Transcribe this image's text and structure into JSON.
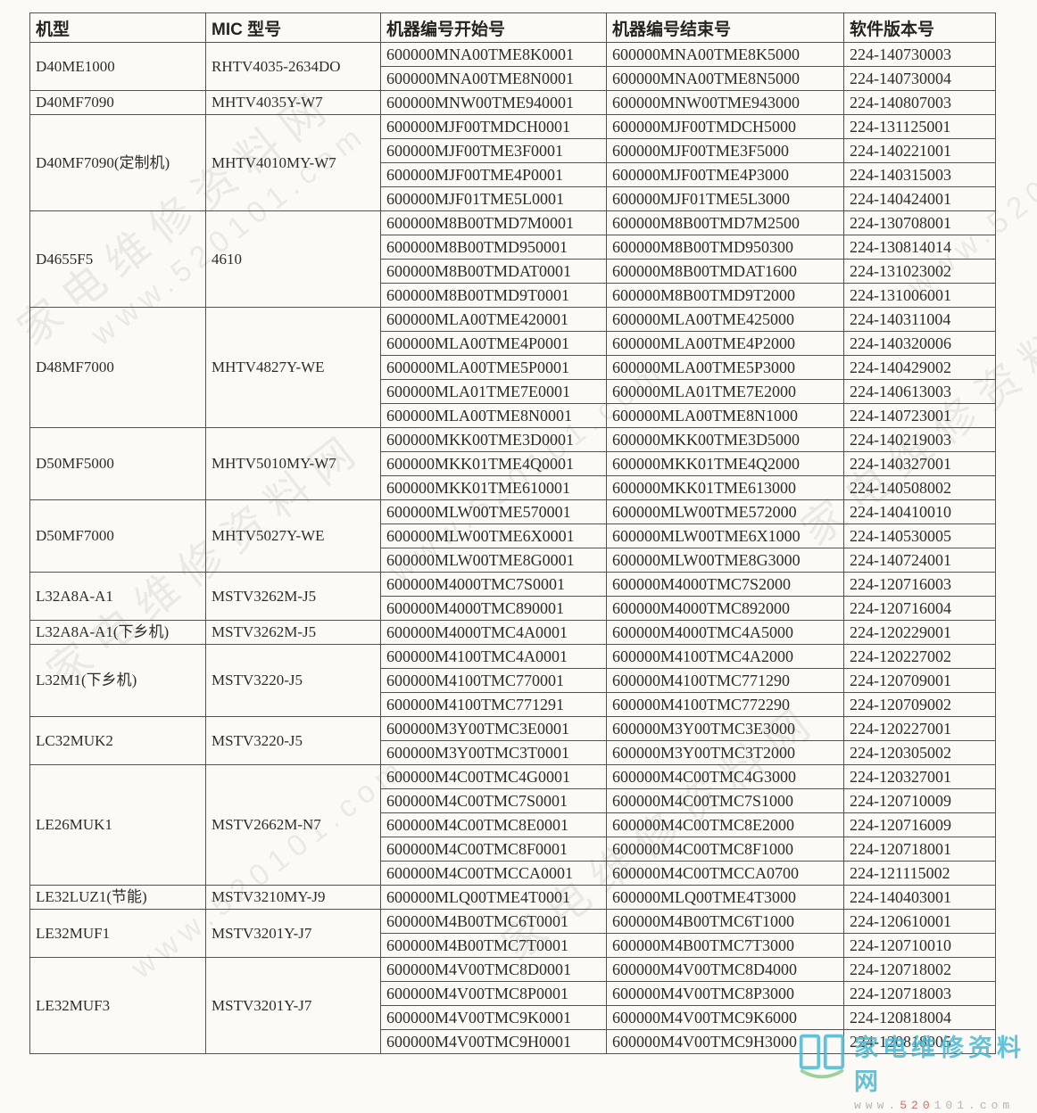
{
  "watermark": {
    "text_cn": "家电维修资料网",
    "text_url": "www.520101.com"
  },
  "logo": {
    "site_name": "家电维修资料网",
    "url_prefix": "www.",
    "url_highlight": "520",
    "url_suffix": "101.com",
    "accent_color": "#49b9d4",
    "highlight_color": "#d05347"
  },
  "table": {
    "headers": [
      "机型",
      "MIC 型号",
      "机器编号开始号",
      "机器编号结束号",
      "软件版本号"
    ],
    "groups": [
      {
        "model": "D40ME1000",
        "mic": "RHTV4035-2634DO",
        "rows": [
          [
            "600000MNA00TME8K0001",
            "600000MNA00TME8K5000",
            "224-140730003"
          ],
          [
            "600000MNA00TME8N0001",
            "600000MNA00TME8N5000",
            "224-140730004"
          ]
        ]
      },
      {
        "model": "D40MF7090",
        "mic": "MHTV4035Y-W7",
        "rows": [
          [
            "600000MNW00TME940001",
            "600000MNW00TME943000",
            "224-140807003"
          ]
        ]
      },
      {
        "model": "D40MF7090(定制机)",
        "mic": "MHTV4010MY-W7",
        "rows": [
          [
            "600000MJF00TMDCH0001",
            "600000MJF00TMDCH5000",
            "224-131125001"
          ],
          [
            "600000MJF00TME3F0001",
            "600000MJF00TME3F5000",
            "224-140221001"
          ],
          [
            "600000MJF00TME4P0001",
            "600000MJF00TME4P3000",
            "224-140315003"
          ],
          [
            "600000MJF01TME5L0001",
            "600000MJF01TME5L3000",
            "224-140424001"
          ]
        ]
      },
      {
        "model": "D4655F5",
        "mic": "4610",
        "rows": [
          [
            "600000M8B00TMD7M0001",
            "600000M8B00TMD7M2500",
            "224-130708001"
          ],
          [
            "600000M8B00TMD950001",
            "600000M8B00TMD950300",
            "224-130814014"
          ],
          [
            "600000M8B00TMDAT0001",
            "600000M8B00TMDAT1600",
            "224-131023002"
          ],
          [
            "600000M8B00TMD9T0001",
            "600000M8B00TMD9T2000",
            "224-131006001"
          ]
        ]
      },
      {
        "model": "D48MF7000",
        "mic": "MHTV4827Y-WE",
        "rows": [
          [
            "600000MLA00TME420001",
            "600000MLA00TME425000",
            "224-140311004"
          ],
          [
            "600000MLA00TME4P0001",
            "600000MLA00TME4P2000",
            "224-140320006"
          ],
          [
            "600000MLA00TME5P0001",
            "600000MLA00TME5P3000",
            "224-140429002"
          ],
          [
            "600000MLA01TME7E0001",
            "600000MLA01TME7E2000",
            "224-140613003"
          ],
          [
            "600000MLA00TME8N0001",
            "600000MLA00TME8N1000",
            "224-140723001"
          ]
        ]
      },
      {
        "model": "D50MF5000",
        "mic": "MHTV5010MY-W7",
        "rows": [
          [
            "600000MKK00TME3D0001",
            "600000MKK00TME3D5000",
            "224-140219003"
          ],
          [
            "600000MKK01TME4Q0001",
            "600000MKK01TME4Q2000",
            "224-140327001"
          ],
          [
            "600000MKK01TME610001",
            "600000MKK01TME613000",
            "224-140508002"
          ]
        ]
      },
      {
        "model": "D50MF7000",
        "mic": "MHTV5027Y-WE",
        "rows": [
          [
            "600000MLW00TME570001",
            "600000MLW00TME572000",
            "224-140410010"
          ],
          [
            "600000MLW00TME6X0001",
            "600000MLW00TME6X1000",
            "224-140530005"
          ],
          [
            "600000MLW00TME8G0001",
            "600000MLW00TME8G3000",
            "224-140724001"
          ]
        ]
      },
      {
        "model": "L32A8A-A1",
        "mic": "MSTV3262M-J5",
        "rows": [
          [
            "600000M4000TMC7S0001",
            "600000M4000TMC7S2000",
            "224-120716003"
          ],
          [
            "600000M4000TMC890001",
            "600000M4000TMC892000",
            "224-120716004"
          ]
        ]
      },
      {
        "model": "L32A8A-A1(下乡机)",
        "mic": "MSTV3262M-J5",
        "rows": [
          [
            "600000M4000TMC4A0001",
            "600000M4000TMC4A5000",
            "224-120229001"
          ]
        ]
      },
      {
        "model": "L32M1(下乡机)",
        "mic": "MSTV3220-J5",
        "rows": [
          [
            "600000M4100TMC4A0001",
            "600000M4100TMC4A2000",
            "224-120227002"
          ],
          [
            "600000M4100TMC770001",
            "600000M4100TMC771290",
            "224-120709001"
          ],
          [
            "600000M4100TMC771291",
            "600000M4100TMC772290",
            "224-120709002"
          ]
        ]
      },
      {
        "model": "LC32MUK2",
        "mic": "MSTV3220-J5",
        "rows": [
          [
            "600000M3Y00TMC3E0001",
            "600000M3Y00TMC3E3000",
            "224-120227001"
          ],
          [
            "600000M3Y00TMC3T0001",
            "600000M3Y00TMC3T2000",
            "224-120305002"
          ]
        ]
      },
      {
        "model": "LE26MUK1",
        "mic": "MSTV2662M-N7",
        "rows": [
          [
            "600000M4C00TMC4G0001",
            "600000M4C00TMC4G3000",
            "224-120327001"
          ],
          [
            "600000M4C00TMC7S0001",
            "600000M4C00TMC7S1000",
            "224-120710009"
          ],
          [
            "600000M4C00TMC8E0001",
            "600000M4C00TMC8E2000",
            "224-120716009"
          ],
          [
            "600000M4C00TMC8F0001",
            "600000M4C00TMC8F1000",
            "224-120718001"
          ],
          [
            "600000M4C00TMCCA0001",
            "600000M4C00TMCCA0700",
            "224-121115002"
          ]
        ]
      },
      {
        "model": "LE32LUZ1(节能)",
        "mic": "MSTV3210MY-J9",
        "rows": [
          [
            "600000MLQ00TME4T0001",
            "600000MLQ00TME4T3000",
            "224-140403001"
          ]
        ]
      },
      {
        "model": "LE32MUF1",
        "mic": "MSTV3201Y-J7",
        "rows": [
          [
            "600000M4B00TMC6T0001",
            "600000M4B00TMC6T1000",
            "224-120610001"
          ],
          [
            "600000M4B00TMC7T0001",
            "600000M4B00TMC7T3000",
            "224-120710010"
          ]
        ]
      },
      {
        "model": "LE32MUF3",
        "mic": "MSTV3201Y-J7",
        "rows": [
          [
            "600000M4V00TMC8D0001",
            "600000M4V00TMC8D4000",
            "224-120718002"
          ],
          [
            "600000M4V00TMC8P0001",
            "600000M4V00TMC8P3000",
            "224-120718003"
          ],
          [
            "600000M4V00TMC9K0001",
            "600000M4V00TMC9K6000",
            "224-120818004"
          ],
          [
            "600000M4V00TMC9H0001",
            "600000M4V00TMC9H3000",
            "224-120818005"
          ]
        ]
      }
    ]
  }
}
